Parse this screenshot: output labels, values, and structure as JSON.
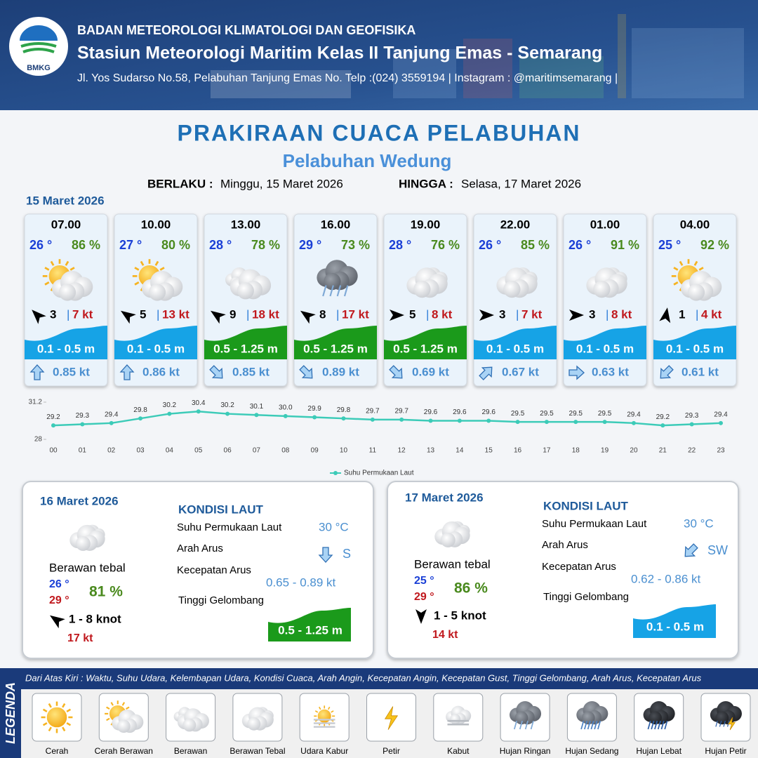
{
  "header": {
    "logo": "BMKG",
    "organization": "BADAN METEOROLOGI KLIMATOLOGI DAN GEOFISIKA",
    "station": "Stasiun Meteorologi Maritim Kelas II Tanjung Emas - Semarang",
    "address": "Jl. Yos Sudarso No.58, Pelabuhan Tanjung Emas No. Telp :(024) 3559194 | Instagram : @maritimsemarang |"
  },
  "title": "PRAKIRAAN CUACA PELABUHAN",
  "subtitle": "Pelabuhan Wedung",
  "validity": {
    "from_label": "BERLAKU :",
    "from": "Minggu, 15 Maret 2026",
    "to_label": "HINGGA :",
    "to": "Selasa, 17 Maret 2026"
  },
  "forecast": {
    "date": "15 Maret 2026",
    "slots": [
      {
        "time": "07.00",
        "temp": "26 °",
        "humidity": "86 %",
        "wind": "3",
        "gust": "7 kt",
        "wave": "0.1 - 0.5 m",
        "wave_color": "#16a3e6",
        "current": "0.85 kt"
      },
      {
        "time": "10.00",
        "temp": "27 °",
        "humidity": "80 %",
        "wind": "5",
        "gust": "13 kt",
        "wave": "0.1 - 0.5 m",
        "wave_color": "#16a3e6",
        "current": "0.86 kt"
      },
      {
        "time": "13.00",
        "temp": "28 °",
        "humidity": "78 %",
        "wind": "9",
        "gust": "18 kt",
        "wave": "0.5 - 1.25 m",
        "wave_color": "#1b9a1b",
        "current": "0.85 kt"
      },
      {
        "time": "16.00",
        "temp": "29 °",
        "humidity": "73 %",
        "wind": "8",
        "gust": "17 kt",
        "wave": "0.5 - 1.25 m",
        "wave_color": "#1b9a1b",
        "current": "0.89 kt"
      },
      {
        "time": "19.00",
        "temp": "28 °",
        "humidity": "76 %",
        "wind": "5",
        "gust": "8 kt",
        "wave": "0.5 - 1.25 m",
        "wave_color": "#1b9a1b",
        "current": "0.69 kt"
      },
      {
        "time": "22.00",
        "temp": "26 °",
        "humidity": "85 %",
        "wind": "3",
        "gust": "7 kt",
        "wave": "0.1 - 0.5 m",
        "wave_color": "#16a3e6",
        "current": "0.67 kt"
      },
      {
        "time": "01.00",
        "temp": "26 °",
        "humidity": "91 %",
        "wind": "3",
        "gust": "8 kt",
        "wave": "0.1 - 0.5 m",
        "wave_color": "#16a3e6",
        "current": "0.63 kt"
      },
      {
        "time": "04.00",
        "temp": "25 °",
        "humidity": "92 %",
        "wind": "1",
        "gust": "4 kt",
        "wave": "0.1 - 0.5 m",
        "wave_color": "#16a3e6",
        "current": "0.61 kt"
      }
    ]
  },
  "chart_data": {
    "type": "line",
    "legend": "Suhu Permukaan Laut",
    "color": "#3ccbb8",
    "categories": [
      "00",
      "01",
      "02",
      "03",
      "04",
      "05",
      "06",
      "07",
      "08",
      "09",
      "10",
      "11",
      "12",
      "13",
      "14",
      "15",
      "16",
      "17",
      "18",
      "19",
      "20",
      "21",
      "22",
      "23"
    ],
    "values": [
      29.2,
      29.3,
      29.4,
      29.8,
      30.2,
      30.4,
      30.2,
      30.1,
      30.0,
      29.9,
      29.8,
      29.7,
      29.7,
      29.6,
      29.6,
      29.6,
      29.5,
      29.5,
      29.5,
      29.5,
      29.4,
      29.2,
      29.3,
      29.4
    ],
    "value_labels": [
      "29.2",
      "29.3",
      "29.4",
      "29.8",
      "30.2",
      "30.4",
      "30.2",
      "30.1",
      "30.0",
      "29.9",
      "29.8",
      "29.7",
      "29.7",
      "29.6",
      "29.6",
      "29.6",
      "29.5",
      "29.5",
      "29.5",
      "29.5",
      "29.4",
      "29.2",
      "29.3",
      "29.4"
    ],
    "ylim": [
      28,
      31.2
    ],
    "yticks": [
      28,
      31.2
    ]
  },
  "days": [
    {
      "date": "16 Maret 2026",
      "condition": "Berawan tebal",
      "temp_min": "26 °",
      "temp_max": "29 °",
      "humidity": "81 %",
      "wind": "1 - 8 knot",
      "gust": "17 kt",
      "sea_heading": "KONDISI LAUT",
      "sst_label": "Suhu Permukaan Laut",
      "sst": "30 °C",
      "current_dir_label": "Arah Arus",
      "current_dir": "S",
      "current_speed_label": "Kecepatan Arus",
      "current_speed": "0.65 - 0.89 kt",
      "wave_label": "Tinggi Gelombang",
      "wave": "0.5 - 1.25 m",
      "wave_color": "#1b9a1b"
    },
    {
      "date": "17 Maret 2026",
      "condition": "Berawan tebal",
      "temp_min": "25 °",
      "temp_max": "29 °",
      "humidity": "86 %",
      "wind": "1 - 5 knot",
      "gust": "14 kt",
      "sea_heading": "KONDISI LAUT",
      "sst_label": "Suhu Permukaan Laut",
      "sst": "30 °C",
      "current_dir_label": "Arah Arus",
      "current_dir": "SW",
      "current_speed_label": "Kecepatan Arus",
      "current_speed": "0.62 - 0.86 kt",
      "wave_label": "Tinggi Gelombang",
      "wave": "0.1 - 0.5 m",
      "wave_color": "#16a3e6"
    }
  ],
  "legend": {
    "title": "LEGENDA",
    "description": "Dari Atas Kiri : Waktu, Suhu Udara, Kelembapan Udara, Kondisi Cuaca, Arah Angin, Kecepatan Angin, Kecepatan Gust, Tinggi Gelombang, Arah Arus, Kecepatan Arus",
    "items": [
      "Cerah",
      "Cerah Berawan",
      "Berawan",
      "Berawan Tebal",
      "Udara Kabur",
      "Petir",
      "Kabut",
      "Hujan Ringan",
      "Hujan Sedang",
      "Hujan Lebat",
      "Hujan Petir"
    ]
  }
}
